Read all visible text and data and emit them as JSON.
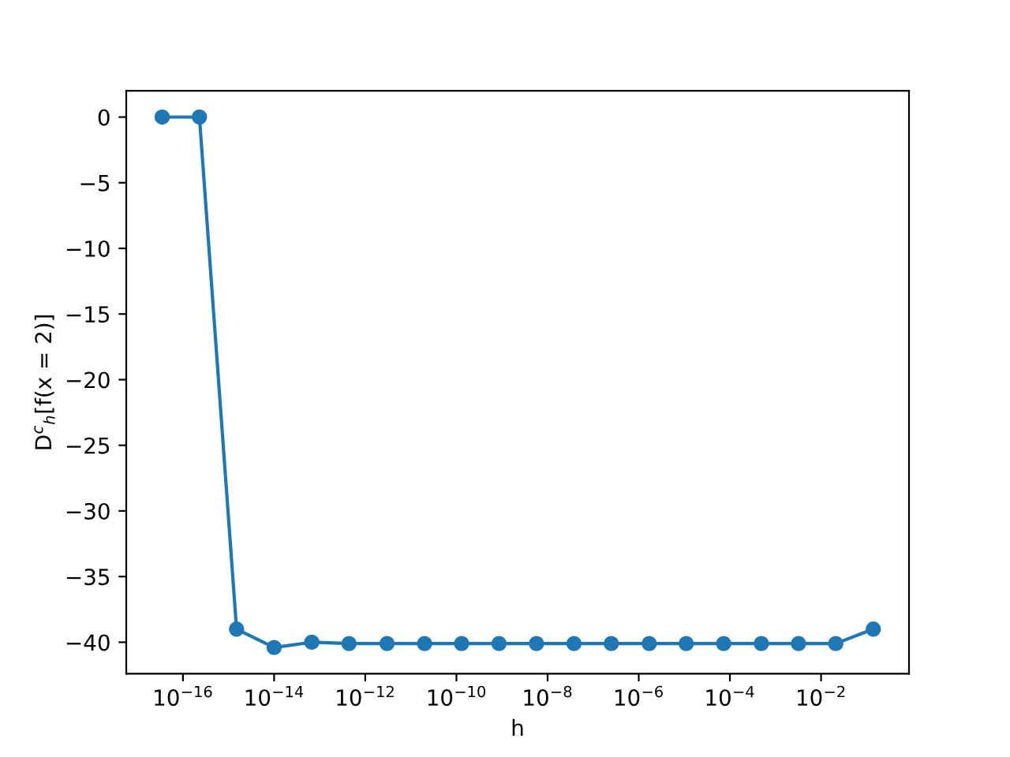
{
  "chart_data": {
    "type": "line",
    "xlabel": "h",
    "ylabel": "D$^{c}$$_{h}$[f(x = 2)]",
    "x": [
      3.5e-17,
      2.3e-16,
      1.5e-15,
      1e-14,
      6.7e-14,
      4.4e-13,
      3e-12,
      2e-11,
      1.3e-10,
      8.6e-10,
      5.7e-09,
      3.8e-08,
      2.5e-07,
      1.7e-06,
      1.1e-05,
      7.3e-05,
      0.00049,
      0.0032,
      0.021,
      0.14
    ],
    "series": [
      {
        "color": "#1f77b4",
        "values": [
          0,
          0,
          -39.0,
          -40.4,
          -40.0,
          -40.1,
          -40.1,
          -40.1,
          -40.1,
          -40.1,
          -40.1,
          -40.1,
          -40.1,
          -40.1,
          -40.1,
          -40.1,
          -40.1,
          -40.1,
          -40.1,
          -39.0
        ]
      }
    ],
    "log": "x",
    "xlim": [
      5.7e-18,
      0.85
    ],
    "ylim": [
      -42.4,
      2.0
    ],
    "xticks": [
      {
        "value": 1e-16,
        "label": "10$^{−16}$"
      },
      {
        "value": 1e-14,
        "label": "10$^{−14}$"
      },
      {
        "value": 1e-12,
        "label": "10$^{−12}$"
      },
      {
        "value": 1e-10,
        "label": "10$^{−10}$"
      },
      {
        "value": 1e-08,
        "label": "10$^{−8}$"
      },
      {
        "value": 1e-06,
        "label": "10$^{−6}$"
      },
      {
        "value": 0.0001,
        "label": "10$^{−4}$"
      },
      {
        "value": 0.01,
        "label": "10$^{−2}$"
      }
    ],
    "yticks": [
      {
        "value": 0,
        "label": "0"
      },
      {
        "value": -5,
        "label": "−5"
      },
      {
        "value": -10,
        "label": "−10"
      },
      {
        "value": -15,
        "label": "−15"
      },
      {
        "value": -20,
        "label": "−20"
      },
      {
        "value": -25,
        "label": "−25"
      },
      {
        "value": -30,
        "label": "−30"
      },
      {
        "value": -35,
        "label": "−35"
      },
      {
        "value": -40,
        "label": "−40"
      }
    ],
    "grid": false,
    "marker": "circle",
    "line_style": "solid"
  }
}
